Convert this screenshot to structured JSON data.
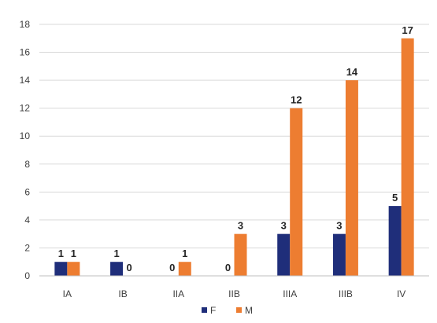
{
  "chart_data": {
    "type": "bar",
    "categories": [
      "IA",
      "IB",
      "IIA",
      "IIB",
      "IIIA",
      "IIIB",
      "IV"
    ],
    "series": [
      {
        "name": "F",
        "color": "#1f2e7a",
        "values": [
          1,
          1,
          0,
          0,
          3,
          3,
          5
        ]
      },
      {
        "name": "M",
        "color": "#ed7d31",
        "values": [
          1,
          0,
          1,
          3,
          12,
          14,
          17
        ]
      }
    ],
    "title": "",
    "xlabel": "",
    "ylabel": "",
    "ylim": [
      0,
      18
    ],
    "yticks": [
      0,
      2,
      4,
      6,
      8,
      10,
      12,
      14,
      16,
      18
    ],
    "grid": true,
    "legend": "bottom",
    "data_labels": true
  }
}
